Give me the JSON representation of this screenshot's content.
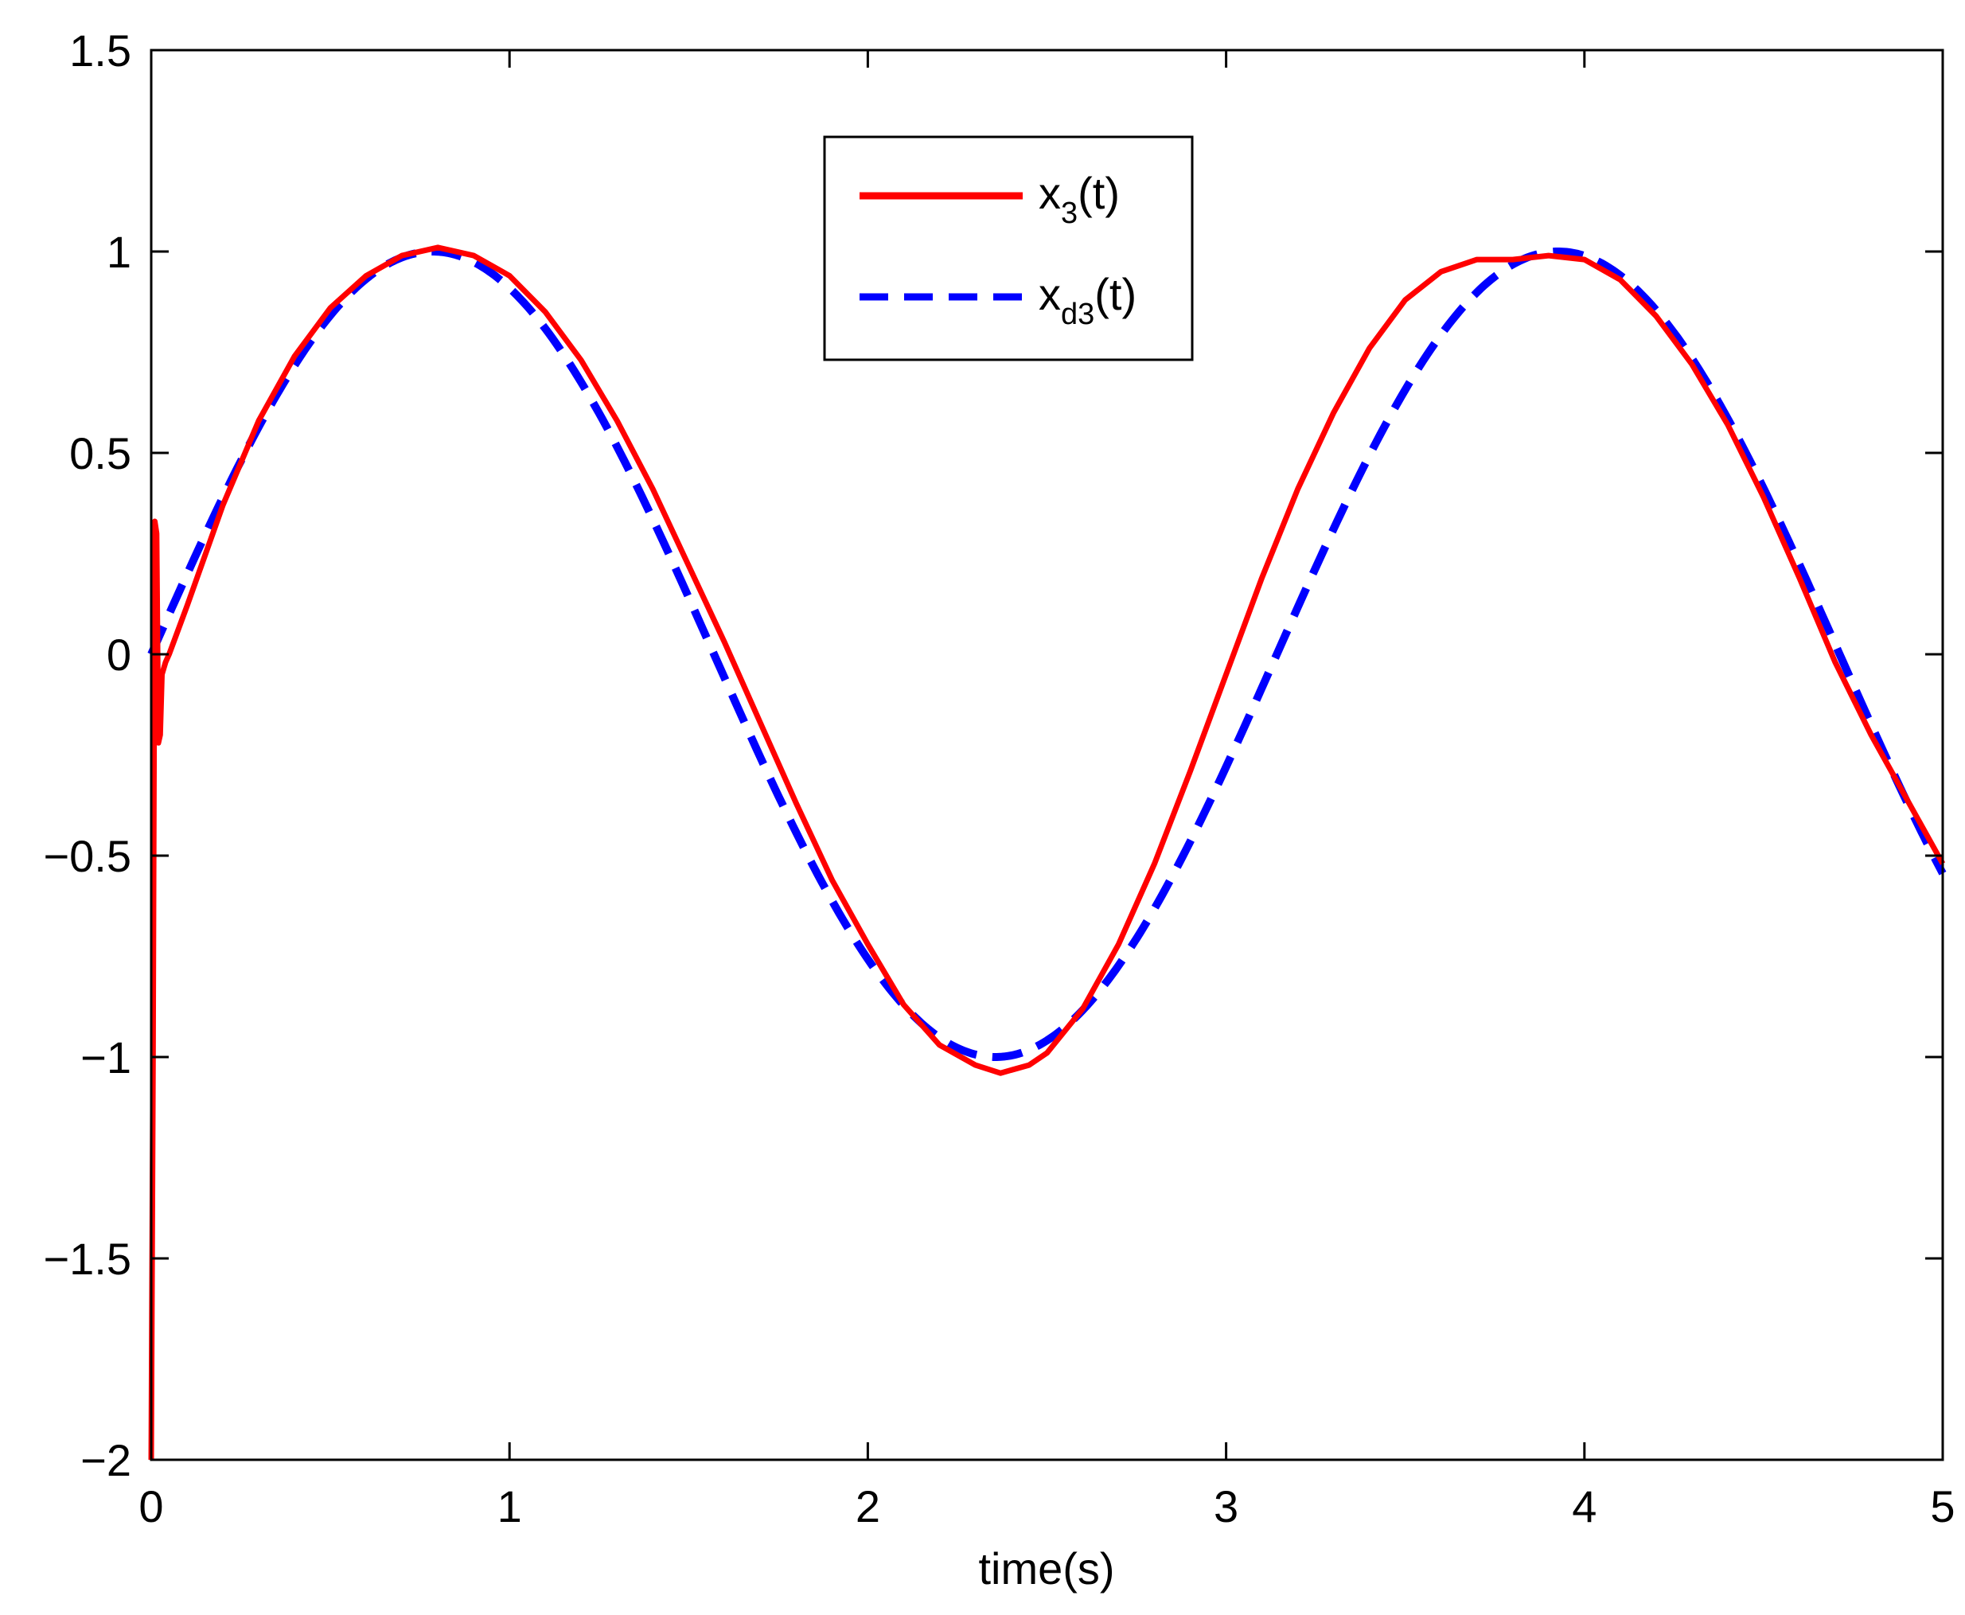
{
  "chart_data": {
    "type": "line",
    "title": "",
    "xlabel": "time(s)",
    "ylabel": "",
    "xlim": [
      0,
      5
    ],
    "ylim": [
      -2,
      1.5
    ],
    "x_ticks": [
      0,
      1,
      2,
      3,
      4,
      5
    ],
    "x_tick_labels": [
      "0",
      "1",
      "2",
      "3",
      "4",
      "5"
    ],
    "y_ticks": [
      -2,
      -1.5,
      -1,
      -0.5,
      0,
      0.5,
      1,
      1.5
    ],
    "y_tick_labels": [
      "−2",
      "−1.5",
      "−1",
      "−0.5",
      "0",
      "0.5",
      "1",
      "1.5"
    ],
    "grid": false,
    "legend_position": "top-center",
    "series": [
      {
        "name": "x3(t)",
        "legend": {
          "main": "x",
          "sub": "3",
          "rest": "(t)"
        },
        "color": "#ff0000",
        "style": "solid",
        "x": [
          0,
          0.005,
          0.01,
          0.015,
          0.02,
          0.025,
          0.03,
          0.04,
          0.05,
          0.1,
          0.2,
          0.3,
          0.4,
          0.5,
          0.6,
          0.7,
          0.8,
          0.9,
          1.0,
          1.1,
          1.2,
          1.3,
          1.4,
          1.5,
          1.6,
          1.7,
          1.8,
          1.9,
          2.0,
          2.1,
          2.2,
          2.3,
          2.37,
          2.45,
          2.5,
          2.6,
          2.7,
          2.8,
          2.9,
          3.0,
          3.1,
          3.2,
          3.3,
          3.4,
          3.5,
          3.6,
          3.7,
          3.8,
          3.9,
          4.0,
          4.1,
          4.2,
          4.3,
          4.4,
          4.5,
          4.6,
          4.7,
          4.8,
          4.9,
          5.0
        ],
        "y": [
          -2.0,
          -1.0,
          0.33,
          0.3,
          -0.22,
          -0.2,
          -0.05,
          -0.02,
          0.0,
          0.12,
          0.37,
          0.58,
          0.74,
          0.86,
          0.94,
          0.99,
          1.01,
          0.99,
          0.94,
          0.85,
          0.73,
          0.58,
          0.41,
          0.22,
          0.03,
          -0.17,
          -0.37,
          -0.56,
          -0.72,
          -0.87,
          -0.97,
          -1.02,
          -1.04,
          -1.02,
          -0.99,
          -0.88,
          -0.72,
          -0.52,
          -0.29,
          -0.05,
          0.19,
          0.41,
          0.6,
          0.76,
          0.88,
          0.95,
          0.98,
          0.98,
          0.99,
          0.98,
          0.93,
          0.84,
          0.72,
          0.57,
          0.39,
          0.19,
          -0.02,
          -0.2,
          -0.36,
          -0.52
        ]
      },
      {
        "name": "xd3(t)",
        "legend": {
          "main": "x",
          "sub": "d3",
          "rest": "(t)"
        },
        "color": "#0000ff",
        "style": "dashed",
        "function": "sin(2t)",
        "x_range": [
          0,
          5
        ]
      }
    ]
  }
}
